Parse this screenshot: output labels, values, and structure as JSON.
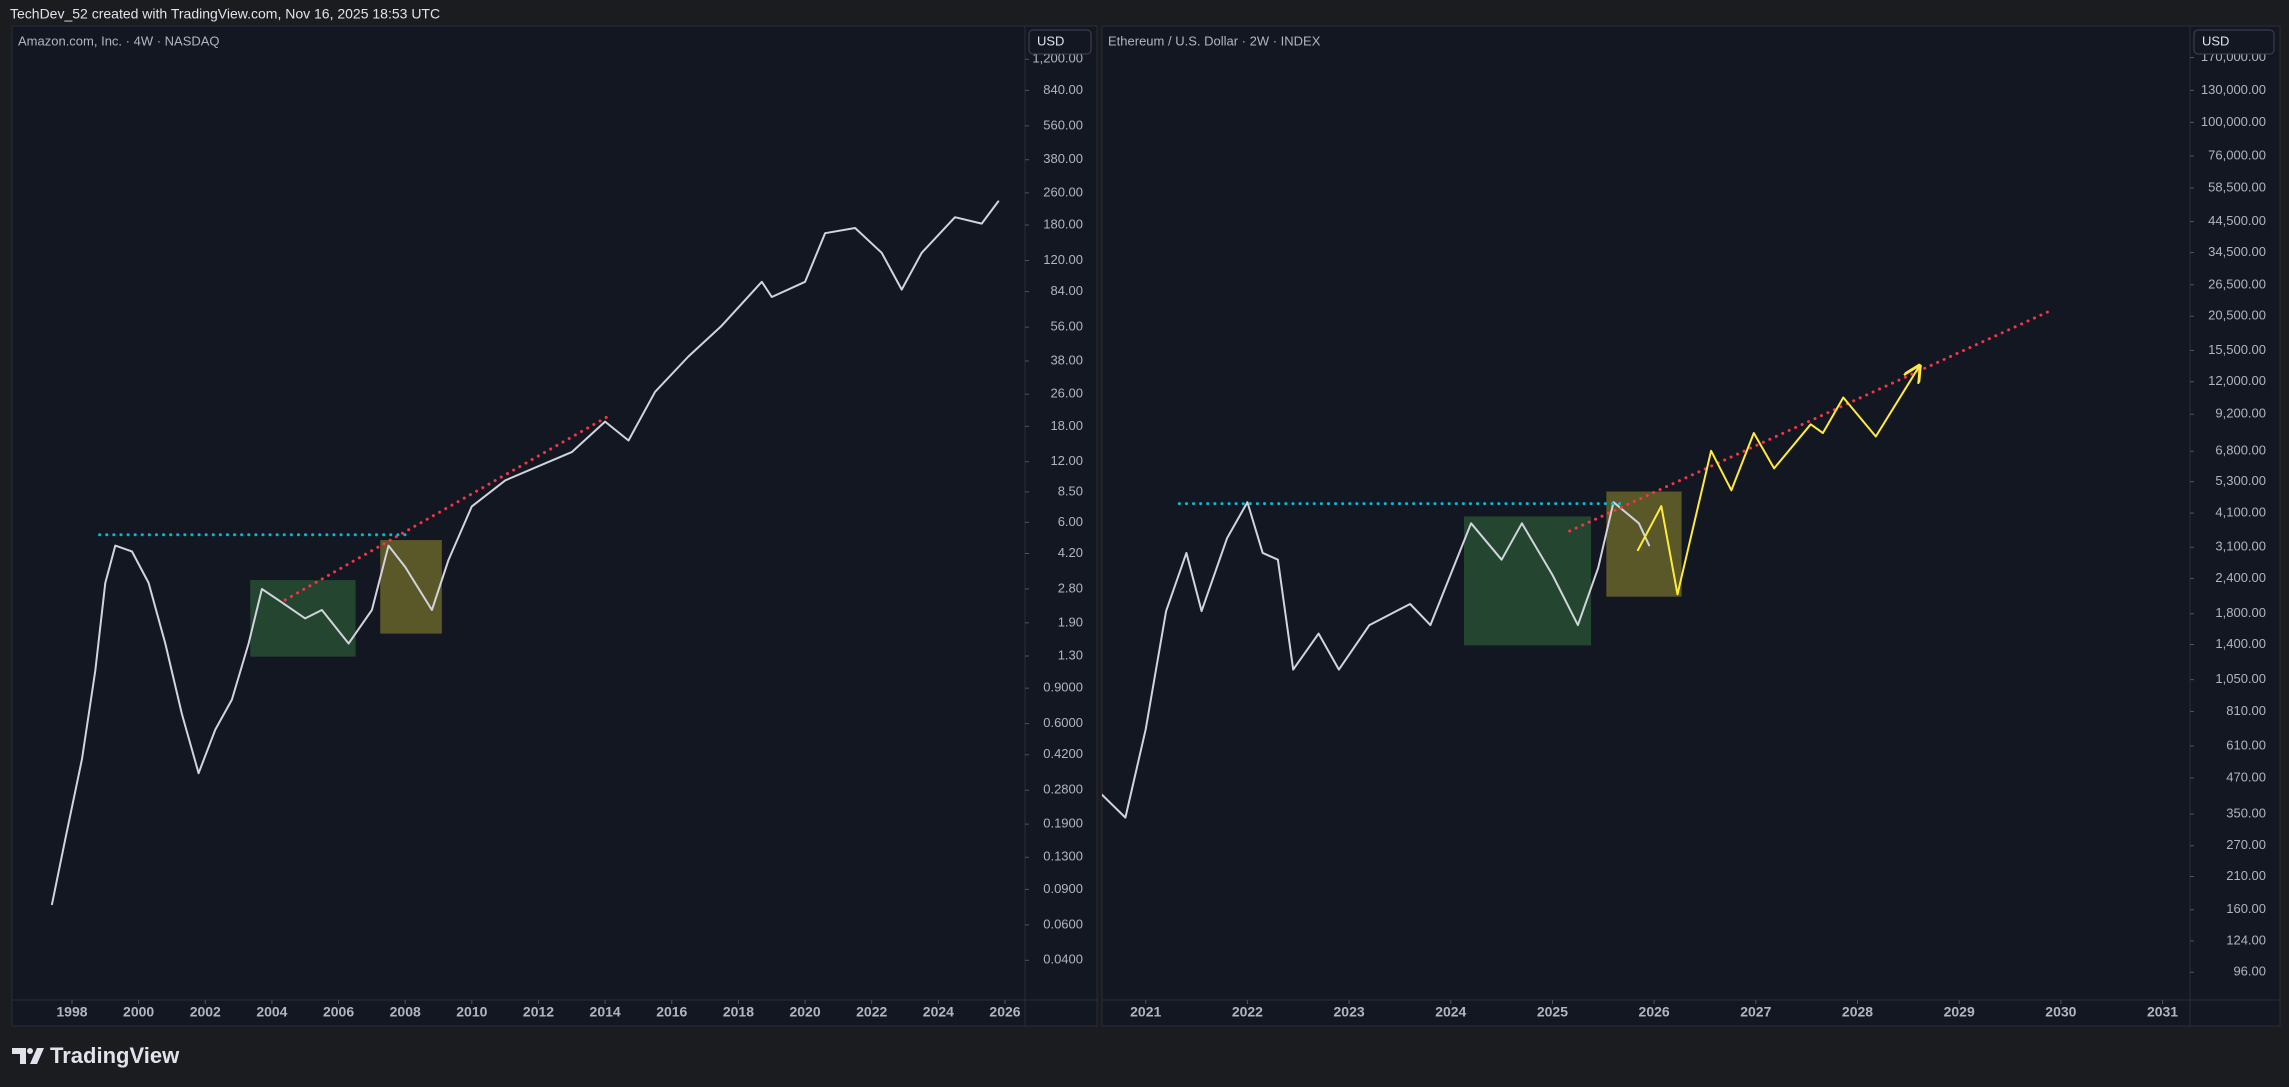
{
  "header": "TechDev_52 created with TradingView.com, Nov 16, 2025 18:53 UTC",
  "footer": {
    "brand": "TradingView"
  },
  "chart_data": [
    {
      "type": "line",
      "title": "Amazon.com, Inc. · 4W · NASDAQ",
      "currency": "USD",
      "log_scale": true,
      "xlim": [
        1996.2,
        2026.6
      ],
      "ylim": [
        0.0254,
        1755
      ],
      "xticks": [
        1998,
        2000,
        2002,
        2004,
        2006,
        2008,
        2010,
        2012,
        2014,
        2016,
        2018,
        2020,
        2022,
        2024,
        2026
      ],
      "yticks": [
        {
          "value": 1200,
          "label": "1,200.00"
        },
        {
          "value": 840,
          "label": "840.00"
        },
        {
          "value": 560,
          "label": "560.00"
        },
        {
          "value": 380,
          "label": "380.00"
        },
        {
          "value": 260,
          "label": "260.00"
        },
        {
          "value": 180,
          "label": "180.00"
        },
        {
          "value": 120,
          "label": "120.00"
        },
        {
          "value": 84,
          "label": "84.00"
        },
        {
          "value": 56,
          "label": "56.00"
        },
        {
          "value": 38,
          "label": "38.00"
        },
        {
          "value": 26,
          "label": "26.00"
        },
        {
          "value": 18,
          "label": "18.00"
        },
        {
          "value": 12,
          "label": "12.00"
        },
        {
          "value": 8.5,
          "label": "8.50"
        },
        {
          "value": 6,
          "label": "6.00"
        },
        {
          "value": 4.2,
          "label": "4.20"
        },
        {
          "value": 2.8,
          "label": "2.80"
        },
        {
          "value": 1.9,
          "label": "1.90"
        },
        {
          "value": 1.3,
          "label": "1.30"
        },
        {
          "value": 0.9,
          "label": "0.9000"
        },
        {
          "value": 0.6,
          "label": "0.6000"
        },
        {
          "value": 0.42,
          "label": "0.4200"
        },
        {
          "value": 0.28,
          "label": "0.2800"
        },
        {
          "value": 0.19,
          "label": "0.1900"
        },
        {
          "value": 0.13,
          "label": "0.1300"
        },
        {
          "value": 0.09,
          "label": "0.0900"
        },
        {
          "value": 0.06,
          "label": "0.0600"
        },
        {
          "value": 0.04,
          "label": "0.0400"
        }
      ],
      "zones": [
        {
          "x": [
            2003.35,
            2006.51
          ],
          "y": [
            1.29,
            3.1
          ],
          "color": "#4caf50"
        },
        {
          "x": [
            2007.25,
            2009.1
          ],
          "y": [
            1.68,
            4.9
          ],
          "color": "#ffeb3b"
        }
      ],
      "series": [
        {
          "color": "#d1d4dc",
          "style": "solid",
          "x": [
            1997.4,
            1997.8,
            1998.3,
            1998.7,
            1999.0,
            1999.3,
            1999.8,
            2000.3,
            2000.8,
            2001.3,
            2001.8,
            2002.3,
            2002.8,
            2003.3,
            2003.7,
            2004.3,
            2005.0,
            2005.5,
            2006.3,
            2007.0,
            2007.5,
            2008.0,
            2008.8,
            2009.3,
            2010.0,
            2011.0,
            2012.0,
            2013.0,
            2014.0,
            2014.7,
            2015.5,
            2016.5,
            2017.5,
            2018.7,
            2019.0,
            2020.0,
            2020.6,
            2021.5,
            2022.3,
            2022.9,
            2023.5,
            2024.5,
            2025.3,
            2025.8
          ],
          "y": [
            0.076,
            0.16,
            0.4,
            1.1,
            3.0,
            4.6,
            4.3,
            3.0,
            1.5,
            0.67,
            0.34,
            0.56,
            0.79,
            1.5,
            2.8,
            2.4,
            2.0,
            2.2,
            1.5,
            2.2,
            4.6,
            3.6,
            2.2,
            3.9,
            7.2,
            9.7,
            11.4,
            13.4,
            19,
            15.3,
            26.7,
            40,
            57,
            94,
            79,
            94,
            164,
            174,
            131,
            86,
            131,
            197,
            183,
            236
          ]
        },
        {
          "color": "#f23645",
          "style": "dotted",
          "x": [
            2004.4,
            2014.05
          ],
          "y": [
            2.47,
            20
          ]
        },
        {
          "color": "#00bcd4",
          "style": "dotted",
          "x": [
            1998.83,
            2008.04
          ],
          "y": [
            5.2,
            5.2
          ]
        }
      ]
    },
    {
      "type": "line",
      "title": "Ethereum / U.S. Dollar · 2W · INDEX",
      "currency": "USD",
      "log_scale": true,
      "xlim": [
        2020.57,
        2031.27
      ],
      "ylim": [
        76.5,
        220000
      ],
      "xticks": [
        2021,
        2022,
        2023,
        2024,
        2025,
        2026,
        2027,
        2028,
        2029,
        2030,
        2031
      ],
      "yticks": [
        {
          "value": 170000,
          "label": "170,000.00"
        },
        {
          "value": 130000,
          "label": "130,000.00"
        },
        {
          "value": 100000,
          "label": "100,000.00"
        },
        {
          "value": 76000,
          "label": "76,000.00"
        },
        {
          "value": 58500,
          "label": "58,500.00"
        },
        {
          "value": 44500,
          "label": "44,500.00"
        },
        {
          "value": 34500,
          "label": "34,500.00"
        },
        {
          "value": 26500,
          "label": "26,500.00"
        },
        {
          "value": 20500,
          "label": "20,500.00"
        },
        {
          "value": 15500,
          "label": "15,500.00"
        },
        {
          "value": 12000,
          "label": "12,000.00"
        },
        {
          "value": 9200,
          "label": "9,200.00"
        },
        {
          "value": 6800,
          "label": "6,800.00"
        },
        {
          "value": 5300,
          "label": "5,300.00"
        },
        {
          "value": 4100,
          "label": "4,100.00"
        },
        {
          "value": 3100,
          "label": "3,100.00"
        },
        {
          "value": 2400,
          "label": "2,400.00"
        },
        {
          "value": 1800,
          "label": "1,800.00"
        },
        {
          "value": 1400,
          "label": "1,400.00"
        },
        {
          "value": 1050,
          "label": "1,050.00"
        },
        {
          "value": 810,
          "label": "810.00"
        },
        {
          "value": 610,
          "label": "610.00"
        },
        {
          "value": 470,
          "label": "470.00"
        },
        {
          "value": 350,
          "label": "350.00"
        },
        {
          "value": 270,
          "label": "270.00"
        },
        {
          "value": 210,
          "label": "210.00"
        },
        {
          "value": 160,
          "label": "160.00"
        },
        {
          "value": 124,
          "label": "124.00"
        },
        {
          "value": 96,
          "label": "96.00"
        }
      ],
      "zones": [
        {
          "x": [
            2024.13,
            2025.38
          ],
          "y": [
            1390,
            3990
          ],
          "color": "#4caf50"
        },
        {
          "x": [
            2025.53,
            2026.27
          ],
          "y": [
            2070,
            4890
          ],
          "color": "#ffeb3b"
        }
      ],
      "series": [
        {
          "color": "#d1d4dc",
          "style": "solid",
          "x": [
            2020.57,
            2020.8,
            2021.0,
            2021.2,
            2021.4,
            2021.55,
            2021.8,
            2022.0,
            2022.15,
            2022.3,
            2022.45,
            2022.7,
            2022.9,
            2023.2,
            2023.6,
            2023.8,
            2024.2,
            2024.5,
            2024.7,
            2025.0,
            2025.25,
            2025.45,
            2025.6,
            2025.85,
            2025.95
          ],
          "y": [
            410,
            340,
            700,
            1840,
            2960,
            1840,
            3340,
            4480,
            2960,
            2800,
            1140,
            1530,
            1140,
            1640,
            1950,
            1640,
            3770,
            2800,
            3770,
            2470,
            1640,
            2620,
            4480,
            3770,
            3150
          ]
        },
        {
          "color": "#f23645",
          "style": "dotted",
          "x": [
            2025.17,
            2029.91
          ],
          "y": [
            3540,
            21550
          ]
        },
        {
          "color": "#00bcd4",
          "style": "dotted",
          "x": [
            2021.33,
            2025.67
          ],
          "y": [
            4430,
            4430
          ]
        },
        {
          "color": "#ffeb3b",
          "style": "solid",
          "arrow": true,
          "x": [
            2025.84,
            2026.07,
            2026.23,
            2026.56,
            2026.76,
            2026.98,
            2027.18,
            2027.54,
            2027.66,
            2027.86,
            2028.18,
            2028.61
          ],
          "y": [
            3030,
            4340,
            2110,
            6820,
            4940,
            7890,
            5910,
            8470,
            7890,
            10550,
            7670,
            13660
          ]
        }
      ]
    }
  ]
}
